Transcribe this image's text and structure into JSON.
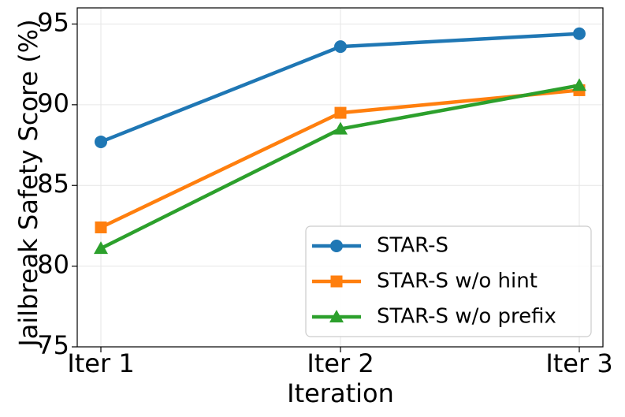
{
  "chart_data": {
    "type": "line",
    "title": "",
    "xlabel": "Iteration",
    "ylabel": "Jailbreak Safety Score (%)",
    "categories": [
      "Iter 1",
      "Iter 2",
      "Iter 3"
    ],
    "ylim": [
      75,
      96
    ],
    "yticks": [
      "75",
      "80",
      "85",
      "90",
      "95"
    ],
    "grid": true,
    "legend_position": "lower-right",
    "series": [
      {
        "name": "STAR-S",
        "values": [
          87.7,
          93.6,
          94.4
        ],
        "color": "#1f77b4",
        "marker": "circle"
      },
      {
        "name": "STAR-S w/o hint",
        "values": [
          82.4,
          89.5,
          90.9
        ],
        "color": "#ff7f0e",
        "marker": "square"
      },
      {
        "name": "STAR-S w/o prefix",
        "values": [
          81.1,
          88.5,
          91.2
        ],
        "color": "#2ca02c",
        "marker": "triangle"
      }
    ]
  }
}
